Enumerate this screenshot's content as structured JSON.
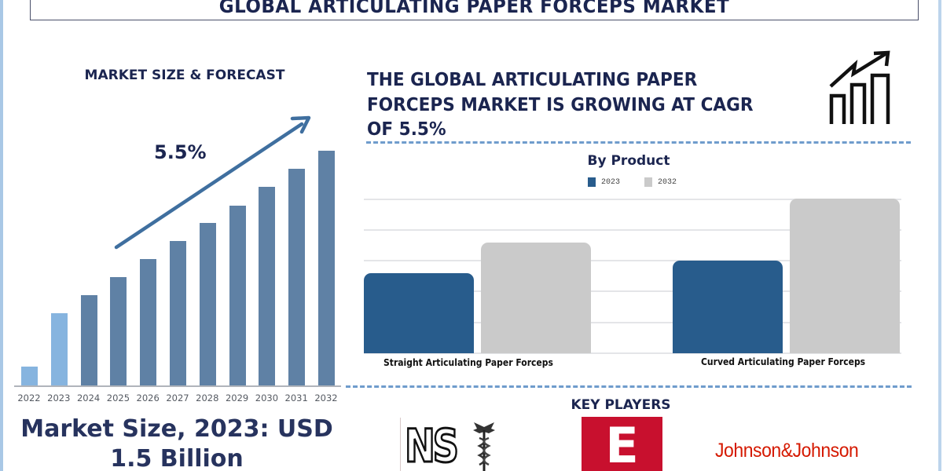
{
  "title": "GLOBAL ARTICULATING PAPER FORCEPS MARKET",
  "left_panel": {
    "section_title": "MARKET SIZE & FORECAST",
    "cagr_label": "5.5%",
    "market_size_line1": "Market Size, 2023: USD",
    "market_size_line2": "1.5 Billion"
  },
  "right_panel": {
    "headline_line1": "THE GLOBAL ARTICULATING PAPER",
    "headline_line2": "FORCEPS MARKET IS GROWING AT CAGR",
    "headline_line3": "OF 5.5%",
    "icon": "growth-chart-icon",
    "by_product_title": "By Product",
    "key_players_title": "KEY PLAYERS",
    "key_players": [
      {
        "name": "NS",
        "logo": "nst-caduceus-logo"
      },
      {
        "name": "E",
        "logo": "red-e-logo"
      },
      {
        "name": "Johnson&Johnson",
        "logo": "johnson-and-johnson-logo"
      }
    ]
  },
  "colors": {
    "title_navy": "#1b2550",
    "bar_historic": "#86b4df",
    "bar_forecast": "#5f81a5",
    "arrow": "#3f6f9f",
    "series_2023": "#285c8c",
    "series_2032": "#cacaca",
    "separator": "#6f9ccc",
    "jj_red": "#d51900",
    "e_red": "#c8102e"
  },
  "chart_data": [
    {
      "type": "bar",
      "title": "MARKET SIZE & FORECAST",
      "categories": [
        "2022",
        "2023",
        "2024",
        "2025",
        "2026",
        "2027",
        "2028",
        "2029",
        "2030",
        "2031",
        "2032"
      ],
      "values": [
        24,
        92,
        115,
        138,
        161,
        184,
        207,
        229,
        253,
        276,
        299
      ],
      "value_unit": "relative bar height (px, no axis scale shown)",
      "annotation": "5.5% (CAGR arrow)",
      "historic_categories": [
        "2022",
        "2023"
      ],
      "xlabel": "",
      "ylabel": "",
      "grid": false
    },
    {
      "type": "bar",
      "title": "By Product",
      "categories": [
        "Straight Articulating Paper Forceps",
        "Curved Articulating Paper Forceps"
      ],
      "series": [
        {
          "name": "2023",
          "values": [
            102,
            118
          ]
        },
        {
          "name": "2032",
          "values": [
            141,
            197
          ]
        }
      ],
      "value_unit": "relative bar height (px, no axis scale shown)",
      "legend_position": "top",
      "grid": true,
      "xlabel": "",
      "ylabel": ""
    }
  ]
}
